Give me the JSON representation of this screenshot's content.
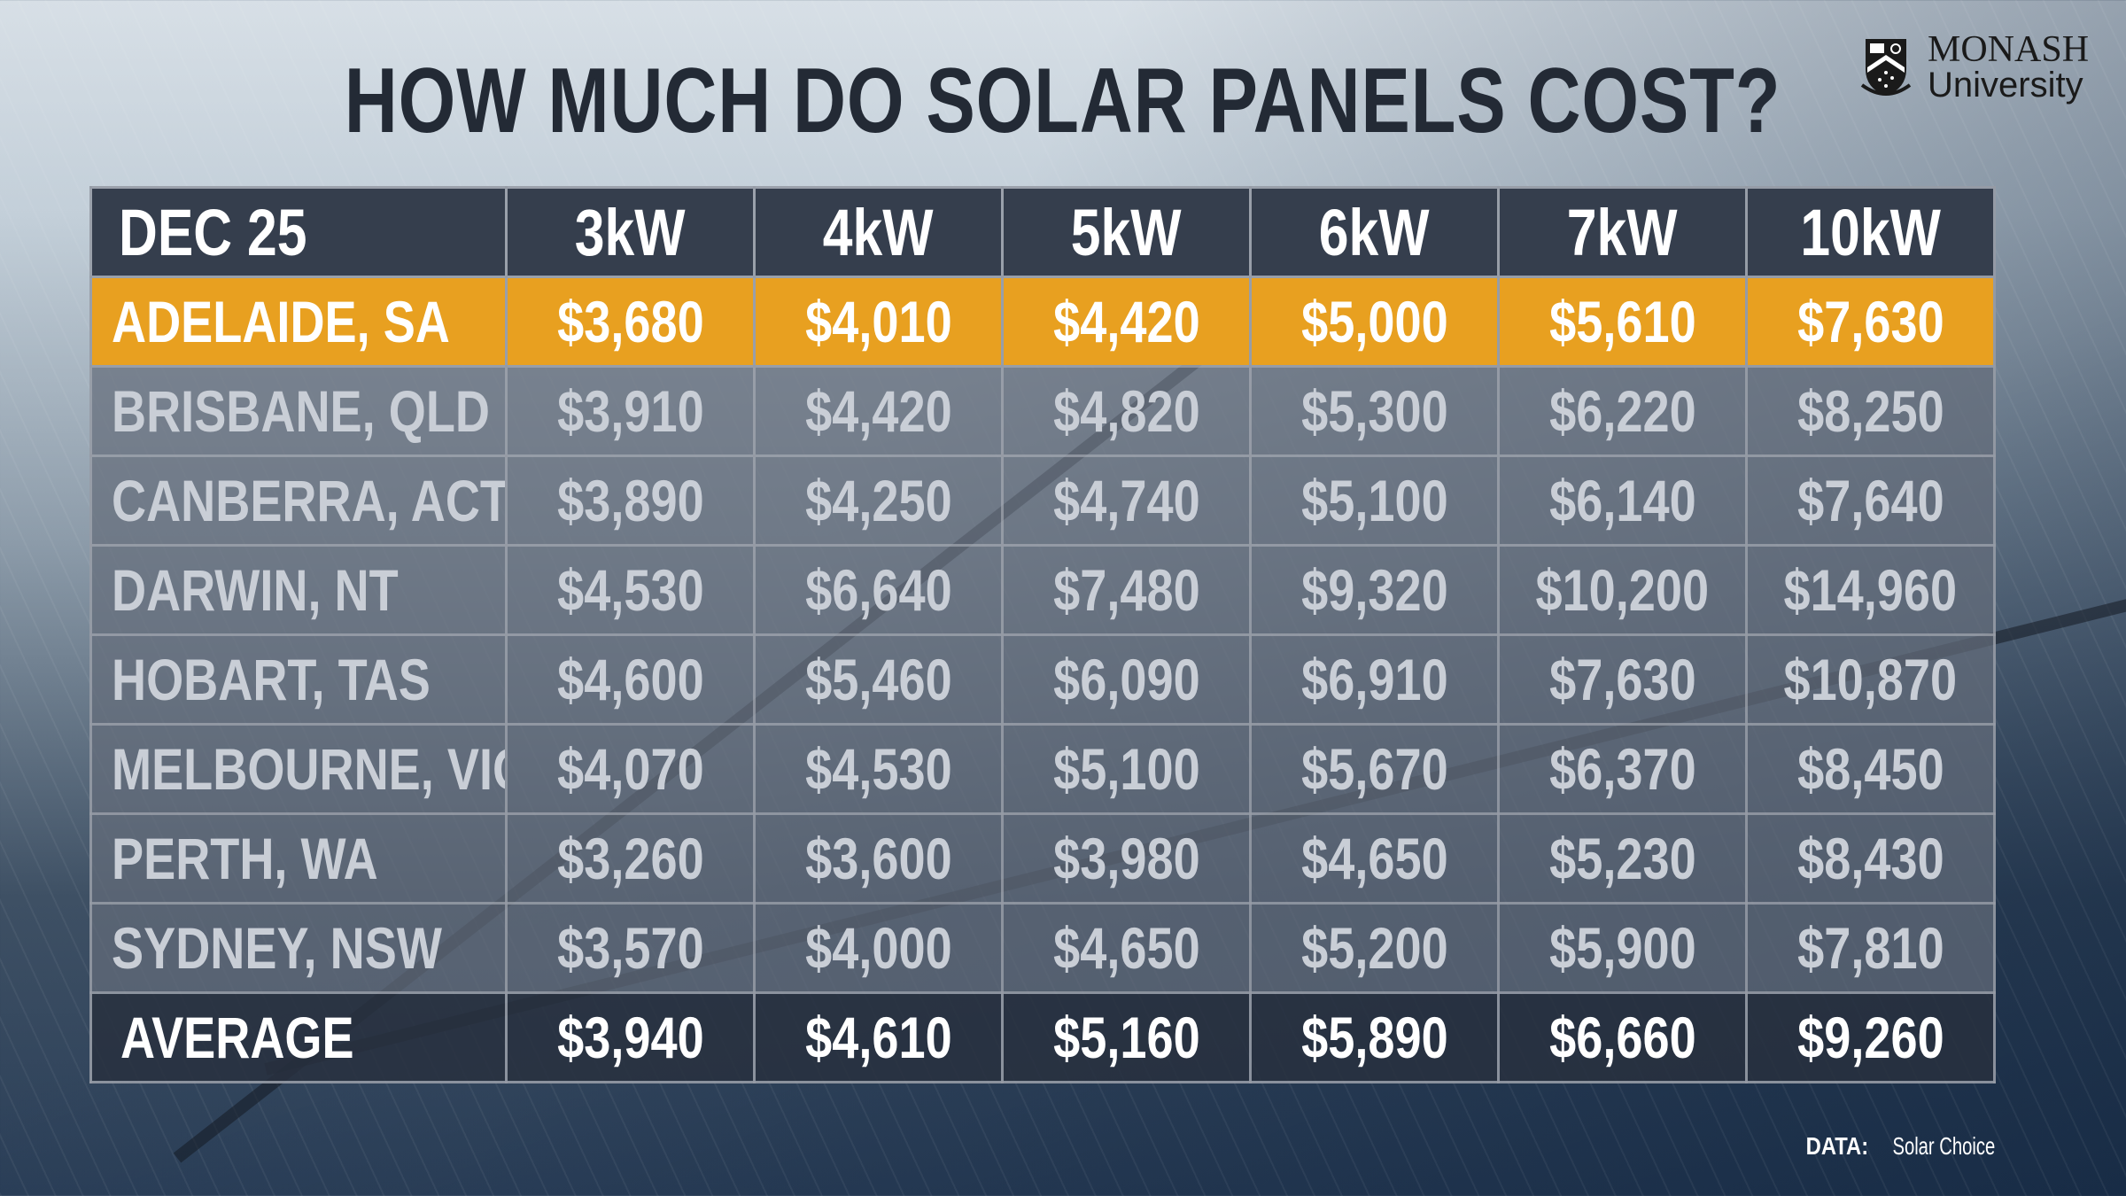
{
  "title": "HOW MUCH DO SOLAR PANELS COST?",
  "logo": {
    "line1": "MONASH",
    "line2": "University"
  },
  "table": {
    "period": "DEC 25",
    "columns": [
      "3kW",
      "4kW",
      "5kW",
      "6kW",
      "7kW",
      "10kW"
    ],
    "rows": [
      {
        "city": "ADELAIDE, SA",
        "values": [
          "$3,680",
          "$4,010",
          "$4,420",
          "$5,000",
          "$5,610",
          "$7,630"
        ],
        "highlight": true
      },
      {
        "city": "BRISBANE, QLD",
        "values": [
          "$3,910",
          "$4,420",
          "$4,820",
          "$5,300",
          "$6,220",
          "$8,250"
        ]
      },
      {
        "city": "CANBERRA, ACT",
        "values": [
          "$3,890",
          "$4,250",
          "$4,740",
          "$5,100",
          "$6,140",
          "$7,640"
        ]
      },
      {
        "city": "DARWIN, NT",
        "values": [
          "$4,530",
          "$6,640",
          "$7,480",
          "$9,320",
          "$10,200",
          "$14,960"
        ]
      },
      {
        "city": "HOBART, TAS",
        "values": [
          "$4,600",
          "$5,460",
          "$6,090",
          "$6,910",
          "$7,630",
          "$10,870"
        ]
      },
      {
        "city": "MELBOURNE, VIC",
        "values": [
          "$4,070",
          "$4,530",
          "$5,100",
          "$5,670",
          "$6,370",
          "$8,450"
        ]
      },
      {
        "city": "PERTH, WA",
        "values": [
          "$3,260",
          "$3,600",
          "$3,980",
          "$4,650",
          "$5,230",
          "$8,430"
        ]
      },
      {
        "city": "SYDNEY, NSW",
        "values": [
          "$3,570",
          "$4,000",
          "$4,650",
          "$5,200",
          "$5,900",
          "$7,810"
        ]
      }
    ],
    "average": {
      "label": "AVERAGE",
      "values": [
        "$3,940",
        "$4,610",
        "$5,160",
        "$5,890",
        "$6,660",
        "$9,260"
      ]
    }
  },
  "source": {
    "label": "DATA:",
    "name": "Solar Choice"
  },
  "colors": {
    "highlight": "#e8a020",
    "header": "#353e4d",
    "title": "#232a35"
  }
}
